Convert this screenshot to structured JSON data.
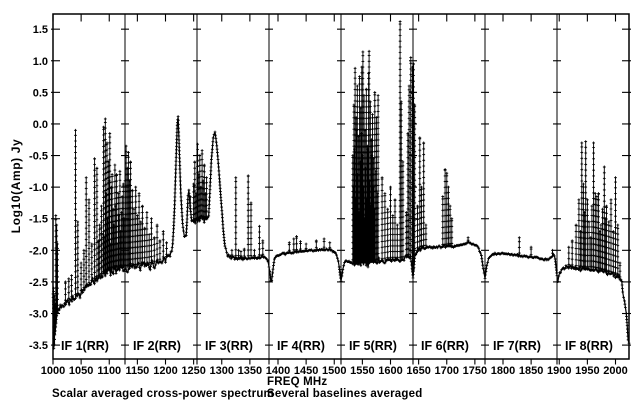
{
  "figure": {
    "background": "#ffffff",
    "foreground": "#000000"
  },
  "chart_data": {
    "type": "scatter",
    "marker": "+",
    "xlabel": "FREQ MHz",
    "ylabel": "Log10(Amp) Jy",
    "footer_left": "Scalar averaged cross-power spectrum",
    "footer_right": "Several baselines averaged",
    "x_range": [
      1000,
      2024
    ],
    "y_range": [
      -3.72,
      1.74
    ],
    "x_ticks": [
      1000,
      1050,
      1100,
      1150,
      1200,
      1250,
      1300,
      1350,
      1400,
      1450,
      1500,
      1550,
      1600,
      1650,
      1700,
      1750,
      1800,
      1850,
      1900,
      1950,
      2000
    ],
    "x_tick_labels": [
      "1000",
      "1050",
      "1100",
      "1150",
      "1200",
      "1250",
      "1300",
      "1350",
      "1400",
      "1450",
      "1500",
      "1550",
      "1600",
      "1650",
      "1700",
      "1750",
      "1800",
      "1850",
      "1900",
      "1950",
      "2000"
    ],
    "y_ticks": [
      1.5,
      1.0,
      0.5,
      0.0,
      -0.5,
      -1.0,
      -1.5,
      -2.0,
      -2.5,
      -3.0,
      -3.5
    ],
    "y_tick_labels": [
      "1.5",
      "1.0",
      "0.5",
      "0.0",
      "-0.5",
      "-1.0",
      "-1.5",
      "-2.0",
      "-2.5",
      "-3.0",
      "-3.5"
    ],
    "grid": false,
    "panels": [
      {
        "label": "IF 1(RR)",
        "start": 1000,
        "end": 1128
      },
      {
        "label": "IF 2(RR)",
        "start": 1128,
        "end": 1256
      },
      {
        "label": "IF 3(RR)",
        "start": 1256,
        "end": 1384
      },
      {
        "label": "IF 4(RR)",
        "start": 1384,
        "end": 1512
      },
      {
        "label": "IF 5(RR)",
        "start": 1512,
        "end": 1640
      },
      {
        "label": "IF 6(RR)",
        "start": 1640,
        "end": 1768
      },
      {
        "label": "IF 7(RR)",
        "start": 1768,
        "end": 1896
      },
      {
        "label": "IF 8(RR)",
        "start": 1896,
        "end": 2024
      }
    ],
    "baseline": [
      [
        1000,
        -2.7
      ],
      [
        1001,
        -3.05
      ],
      [
        1002,
        -3.3
      ],
      [
        1004,
        -3.25
      ],
      [
        1006,
        -3.1
      ],
      [
        1008,
        -3.0
      ],
      [
        1010,
        -2.92
      ],
      [
        1014,
        -2.87
      ],
      [
        1020,
        -2.84
      ],
      [
        1028,
        -2.8
      ],
      [
        1036,
        -2.76
      ],
      [
        1044,
        -2.72
      ],
      [
        1052,
        -2.66
      ],
      [
        1060,
        -2.58
      ],
      [
        1068,
        -2.52
      ],
      [
        1076,
        -2.47
      ],
      [
        1084,
        -2.42
      ],
      [
        1092,
        -2.36
      ],
      [
        1100,
        -2.32
      ],
      [
        1110,
        -2.3
      ],
      [
        1120,
        -2.28
      ],
      [
        1130,
        -2.28
      ],
      [
        1140,
        -2.27
      ],
      [
        1150,
        -2.26
      ],
      [
        1160,
        -2.25
      ],
      [
        1170,
        -2.24
      ],
      [
        1180,
        -2.22
      ],
      [
        1190,
        -2.18
      ],
      [
        1200,
        -2.12
      ],
      [
        1208,
        -2.05
      ],
      [
        1213,
        -1.95
      ],
      [
        1216,
        -1.35
      ],
      [
        1219,
        -0.5
      ],
      [
        1221,
        0.05
      ],
      [
        1222,
        0.17
      ],
      [
        1223,
        0.02
      ],
      [
        1225,
        -0.55
      ],
      [
        1227,
        -1.05
      ],
      [
        1230,
        -1.55
      ],
      [
        1234,
        -1.85
      ],
      [
        1237,
        -1.8
      ],
      [
        1239,
        -1.35
      ],
      [
        1241,
        -0.98
      ],
      [
        1243,
        -1.28
      ],
      [
        1245,
        -1.48
      ],
      [
        1248,
        -1.58
      ],
      [
        1252,
        -1.55
      ],
      [
        1258,
        -1.52
      ],
      [
        1264,
        -1.5
      ],
      [
        1270,
        -1.52
      ],
      [
        1276,
        -1.5
      ],
      [
        1279,
        -1.05
      ],
      [
        1282,
        -0.5
      ],
      [
        1285,
        -0.2
      ],
      [
        1288,
        -0.14
      ],
      [
        1291,
        -0.32
      ],
      [
        1294,
        -0.62
      ],
      [
        1297,
        -1.0
      ],
      [
        1300,
        -1.35
      ],
      [
        1303,
        -1.7
      ],
      [
        1306,
        -1.95
      ],
      [
        1310,
        -2.08
      ],
      [
        1320,
        -2.12
      ],
      [
        1340,
        -2.13
      ],
      [
        1360,
        -2.12
      ],
      [
        1375,
        -2.1
      ],
      [
        1382,
        -2.15
      ],
      [
        1385,
        -2.3
      ],
      [
        1388,
        -2.55
      ],
      [
        1391,
        -2.3
      ],
      [
        1394,
        -2.12
      ],
      [
        1400,
        -2.08
      ],
      [
        1420,
        -2.04
      ],
      [
        1440,
        -2.02
      ],
      [
        1460,
        -2.0
      ],
      [
        1480,
        -1.99
      ],
      [
        1495,
        -2.0
      ],
      [
        1503,
        -2.05
      ],
      [
        1508,
        -2.2
      ],
      [
        1512,
        -2.5
      ],
      [
        1516,
        -2.25
      ],
      [
        1520,
        -2.18
      ],
      [
        1526,
        -2.18
      ],
      [
        1540,
        -2.2
      ],
      [
        1560,
        -2.2
      ],
      [
        1580,
        -2.18
      ],
      [
        1600,
        -2.15
      ],
      [
        1620,
        -2.15
      ],
      [
        1632,
        -2.1
      ],
      [
        1637,
        -2.15
      ],
      [
        1640,
        -2.45
      ],
      [
        1643,
        -2.1
      ],
      [
        1648,
        -2.0
      ],
      [
        1656,
        -1.97
      ],
      [
        1670,
        -1.95
      ],
      [
        1690,
        -1.95
      ],
      [
        1710,
        -1.93
      ],
      [
        1725,
        -1.92
      ],
      [
        1738,
        -1.88
      ],
      [
        1748,
        -1.9
      ],
      [
        1756,
        -1.95
      ],
      [
        1762,
        -2.1
      ],
      [
        1765,
        -2.3
      ],
      [
        1768,
        -2.45
      ],
      [
        1771,
        -2.25
      ],
      [
        1775,
        -2.12
      ],
      [
        1782,
        -2.06
      ],
      [
        1800,
        -2.05
      ],
      [
        1820,
        -2.07
      ],
      [
        1840,
        -2.1
      ],
      [
        1860,
        -2.12
      ],
      [
        1878,
        -2.15
      ],
      [
        1886,
        -2.12
      ],
      [
        1890,
        -2.05
      ],
      [
        1893,
        -2.15
      ],
      [
        1897,
        -2.5
      ],
      [
        1901,
        -2.35
      ],
      [
        1906,
        -2.28
      ],
      [
        1915,
        -2.26
      ],
      [
        1930,
        -2.28
      ],
      [
        1945,
        -2.3
      ],
      [
        1960,
        -2.3
      ],
      [
        1975,
        -2.33
      ],
      [
        1990,
        -2.37
      ],
      [
        2000,
        -2.4
      ],
      [
        2006,
        -2.42
      ],
      [
        2010,
        -2.5
      ],
      [
        2013,
        -2.62
      ],
      [
        2016,
        -2.8
      ],
      [
        2018,
        -2.95
      ],
      [
        2020,
        -3.12
      ],
      [
        2022,
        -3.3
      ],
      [
        2023,
        -3.4
      ],
      [
        2024,
        -3.45
      ]
    ],
    "spikes": [
      [
        1001,
        -2.6
      ],
      [
        1001.5,
        -3.55
      ],
      [
        1002.5,
        -2.72
      ],
      [
        1002.8,
        -3.5
      ],
      [
        1004,
        -2.85
      ],
      [
        1005,
        -1.45
      ],
      [
        1006.5,
        -1.6
      ],
      [
        1008,
        -1.9
      ],
      [
        1022,
        -2.5
      ],
      [
        1028,
        -2.45
      ],
      [
        1033,
        -2.4
      ],
      [
        1040,
        -0.1
      ],
      [
        1044,
        -1.55
      ],
      [
        1050,
        -2.2
      ],
      [
        1055,
        -2.0
      ],
      [
        1059,
        -0.85
      ],
      [
        1064,
        -1.2
      ],
      [
        1069,
        -1.9
      ],
      [
        1074,
        -0.55
      ],
      [
        1078,
        -0.7
      ],
      [
        1081,
        -1.85
      ],
      [
        1083,
        -1.6
      ],
      [
        1086,
        -1.3
      ],
      [
        1089,
        -1.75
      ],
      [
        1090,
        -0.05
      ],
      [
        1091,
        -1.8
      ],
      [
        1093,
        0.08
      ],
      [
        1094,
        -1.1
      ],
      [
        1096,
        -0.3
      ],
      [
        1097,
        -1.5
      ],
      [
        1099,
        -0.6
      ],
      [
        1100,
        -0.9
      ],
      [
        1101,
        -0.15
      ],
      [
        1102,
        -1.9
      ],
      [
        1104,
        -1.0
      ],
      [
        1105,
        -0.8
      ],
      [
        1107,
        -1.35
      ],
      [
        1108,
        -1.6
      ],
      [
        1110,
        -0.65
      ],
      [
        1111,
        -1.3
      ],
      [
        1113,
        -0.8
      ],
      [
        1114,
        -1.9
      ],
      [
        1116,
        -1.1
      ],
      [
        1117,
        -1.45
      ],
      [
        1119,
        -0.75
      ],
      [
        1120,
        -1.7
      ],
      [
        1122,
        -1.4
      ],
      [
        1123,
        -1.15
      ],
      [
        1125,
        -0.95
      ],
      [
        1126,
        -1.5
      ],
      [
        1128,
        -0.9
      ],
      [
        1130,
        -0.35
      ],
      [
        1132,
        -0.7
      ],
      [
        1134,
        -0.45
      ],
      [
        1136,
        -0.9
      ],
      [
        1138,
        -0.6
      ],
      [
        1141,
        -1.05
      ],
      [
        1144,
        -1.35
      ],
      [
        1147,
        -1.0
      ],
      [
        1150,
        -1.45
      ],
      [
        1153,
        -1.1
      ],
      [
        1156,
        -1.55
      ],
      [
        1159,
        -1.3
      ],
      [
        1163,
        -1.65
      ],
      [
        1167,
        -1.4
      ],
      [
        1171,
        -1.75
      ],
      [
        1175,
        -1.5
      ],
      [
        1180,
        -1.8
      ],
      [
        1185,
        -1.6
      ],
      [
        1190,
        -1.85
      ],
      [
        1196,
        -1.7
      ],
      [
        1202,
        -1.88
      ],
      [
        1244,
        -1.15
      ],
      [
        1250,
        -0.95
      ],
      [
        1252,
        -0.6
      ],
      [
        1254,
        -1.1
      ],
      [
        1257,
        -0.32
      ],
      [
        1259,
        -0.8
      ],
      [
        1261,
        -0.5
      ],
      [
        1263,
        -1.0
      ],
      [
        1265,
        -0.42
      ],
      [
        1267,
        -0.9
      ],
      [
        1269,
        -0.65
      ],
      [
        1271,
        -1.1
      ],
      [
        1273,
        -0.85
      ],
      [
        1318,
        -2.0
      ],
      [
        1325,
        -0.85
      ],
      [
        1330,
        -2.0
      ],
      [
        1334,
        -2.02
      ],
      [
        1340,
        -1.98
      ],
      [
        1347,
        -0.82
      ],
      [
        1352,
        -1.25
      ],
      [
        1358,
        -2.0
      ],
      [
        1367,
        -1.62
      ],
      [
        1373,
        -1.85
      ],
      [
        1420,
        -1.88
      ],
      [
        1428,
        -1.82
      ],
      [
        1433,
        -1.78
      ],
      [
        1440,
        -1.86
      ],
      [
        1450,
        -1.9
      ],
      [
        1468,
        -1.85
      ],
      [
        1482,
        -1.82
      ],
      [
        1492,
        -1.88
      ],
      [
        1533,
        -0.5
      ],
      [
        1534,
        -1.0
      ],
      [
        1535,
        0.3
      ],
      [
        1536,
        -0.4
      ],
      [
        1537,
        0.88
      ],
      [
        1538,
        -1.2
      ],
      [
        1539,
        0.1
      ],
      [
        1540,
        -0.1
      ],
      [
        1541,
        0.6
      ],
      [
        1542,
        -0.8
      ],
      [
        1543,
        -0.2
      ],
      [
        1544,
        -1.4
      ],
      [
        1545,
        0.75
      ],
      [
        1546,
        -0.6
      ],
      [
        1547,
        0.25
      ],
      [
        1548,
        -0.15
      ],
      [
        1549,
        0.9
      ],
      [
        1550,
        -0.5
      ],
      [
        1551,
        1.14
      ],
      [
        1552,
        -1.0
      ],
      [
        1553,
        0.45
      ],
      [
        1554,
        -1.5
      ],
      [
        1555,
        -0.1
      ],
      [
        1556,
        -0.7
      ],
      [
        1557,
        0.55
      ],
      [
        1558,
        -1.2
      ],
      [
        1559,
        -0.35
      ],
      [
        1560,
        -0.4
      ],
      [
        1561,
        0.8
      ],
      [
        1562,
        1.15
      ],
      [
        1563,
        -0.9
      ],
      [
        1564,
        0.35
      ],
      [
        1565,
        -1.3
      ],
      [
        1566,
        -0.25
      ],
      [
        1567,
        -0.5
      ],
      [
        1568,
        0.15
      ],
      [
        1569,
        -1.0
      ],
      [
        1570,
        -0.55
      ],
      [
        1571,
        -1.35
      ],
      [
        1572,
        0.5
      ],
      [
        1574,
        -0.75
      ],
      [
        1575,
        0.1
      ],
      [
        1577,
        -1.1
      ],
      [
        1578,
        0.45
      ],
      [
        1585,
        -0.85
      ],
      [
        1590,
        -1.1
      ],
      [
        1595,
        -1.35
      ],
      [
        1600,
        -1.0
      ],
      [
        1604,
        -1.45
      ],
      [
        1608,
        -1.2
      ],
      [
        1612,
        -1.6
      ],
      [
        1617,
        1.62
      ],
      [
        1619,
        0.35
      ],
      [
        1622,
        -0.6
      ],
      [
        1628,
        -1.4
      ],
      [
        1631,
        -0.15
      ],
      [
        1633,
        0.6
      ],
      [
        1636,
        1.05
      ],
      [
        1639,
        0.9
      ],
      [
        1641,
        0.95
      ],
      [
        1643,
        0.3
      ],
      [
        1648,
        -1.3
      ],
      [
        1652,
        -0.22
      ],
      [
        1655,
        -1.0
      ],
      [
        1659,
        -0.3
      ],
      [
        1663,
        -1.6
      ],
      [
        1693,
        -1.15
      ],
      [
        1697,
        -0.72
      ],
      [
        1700,
        -0.78
      ],
      [
        1703,
        -1.0
      ],
      [
        1706,
        -1.3
      ],
      [
        1709,
        -1.5
      ],
      [
        1738,
        -1.8
      ],
      [
        1829,
        -1.8
      ],
      [
        1850,
        -1.95
      ],
      [
        1888,
        -2.0
      ],
      [
        1917,
        -1.95
      ],
      [
        1923,
        -1.85
      ],
      [
        1930,
        -1.6
      ],
      [
        1935,
        -1.2
      ],
      [
        1938,
        -1.7
      ],
      [
        1940,
        -0.3
      ],
      [
        1943,
        -0.95
      ],
      [
        1945,
        -1.4
      ],
      [
        1947,
        -0.28
      ],
      [
        1950,
        -1.2
      ],
      [
        1953,
        -1.55
      ],
      [
        1956,
        -1.8
      ],
      [
        1958,
        -1.3
      ],
      [
        1961,
        -0.3
      ],
      [
        1964,
        -1.1
      ],
      [
        1967,
        -1.15
      ],
      [
        1970,
        -1.1
      ],
      [
        1972,
        -1.7
      ],
      [
        1974,
        -1.6
      ],
      [
        1977,
        -1.35
      ],
      [
        1980,
        -0.68
      ],
      [
        1982,
        -1.5
      ],
      [
        1984,
        -1.3
      ],
      [
        1988,
        -1.55
      ],
      [
        1992,
        -1.2
      ],
      [
        1996,
        -1.7
      ],
      [
        2000,
        -0.85
      ],
      [
        2004,
        -1.6
      ],
      [
        2008,
        -2.2
      ]
    ],
    "noise_regions": [
      [
        1000,
        1006,
        0.14
      ],
      [
        1006,
        1012,
        0.08
      ],
      [
        1012,
        1090,
        0.045
      ],
      [
        1090,
        1145,
        0.065
      ],
      [
        1145,
        1213,
        0.05
      ],
      [
        1213,
        1232,
        0.015
      ],
      [
        1232,
        1278,
        0.06
      ],
      [
        1278,
        1304,
        0.015
      ],
      [
        1304,
        1384,
        0.02
      ],
      [
        1384,
        1512,
        0.012
      ],
      [
        1512,
        1533,
        0.018
      ],
      [
        1533,
        1583,
        0.05
      ],
      [
        1583,
        1645,
        0.025
      ],
      [
        1645,
        1712,
        0.02
      ],
      [
        1712,
        1896,
        0.01
      ],
      [
        1896,
        1912,
        0.018
      ],
      [
        1912,
        2006,
        0.025
      ],
      [
        2006,
        2024,
        0.06
      ]
    ]
  }
}
